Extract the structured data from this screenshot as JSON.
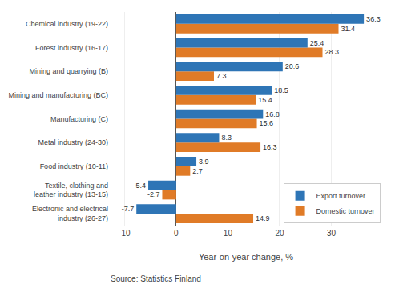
{
  "chart_data": {
    "type": "bar",
    "orientation": "horizontal",
    "categories": [
      "Electronic and electrical\nindustry (26-27)",
      "Textile, clothing and\nleather industry (13-15)",
      "Food industry (10-11)",
      "Metal industry (24-30)",
      "Manufacturing (C)",
      "Mining and manufacturing (BC)",
      "Mining and quarrying (B)",
      "Forest industry (16-17)",
      "Chemical industry (19-22)"
    ],
    "series": [
      {
        "name": "Export turnover",
        "color": "#2E75B6",
        "values": [
          -7.7,
          -5.4,
          3.9,
          8.3,
          16.8,
          18.5,
          20.6,
          25.4,
          36.3
        ]
      },
      {
        "name": "Domestic turnover",
        "color": "#E07B27",
        "values": [
          14.9,
          -2.7,
          2.7,
          16.3,
          15.6,
          15.4,
          7.3,
          28.3,
          31.4
        ]
      }
    ],
    "xlabel": "Year-on-year change, %",
    "xlim": [
      -13,
      40
    ],
    "xticks": [
      -10,
      0,
      10,
      20,
      30
    ],
    "grid": true,
    "legend": "lower right",
    "data_labels": true,
    "annotations": [
      "Source: Statistics Finland"
    ]
  }
}
